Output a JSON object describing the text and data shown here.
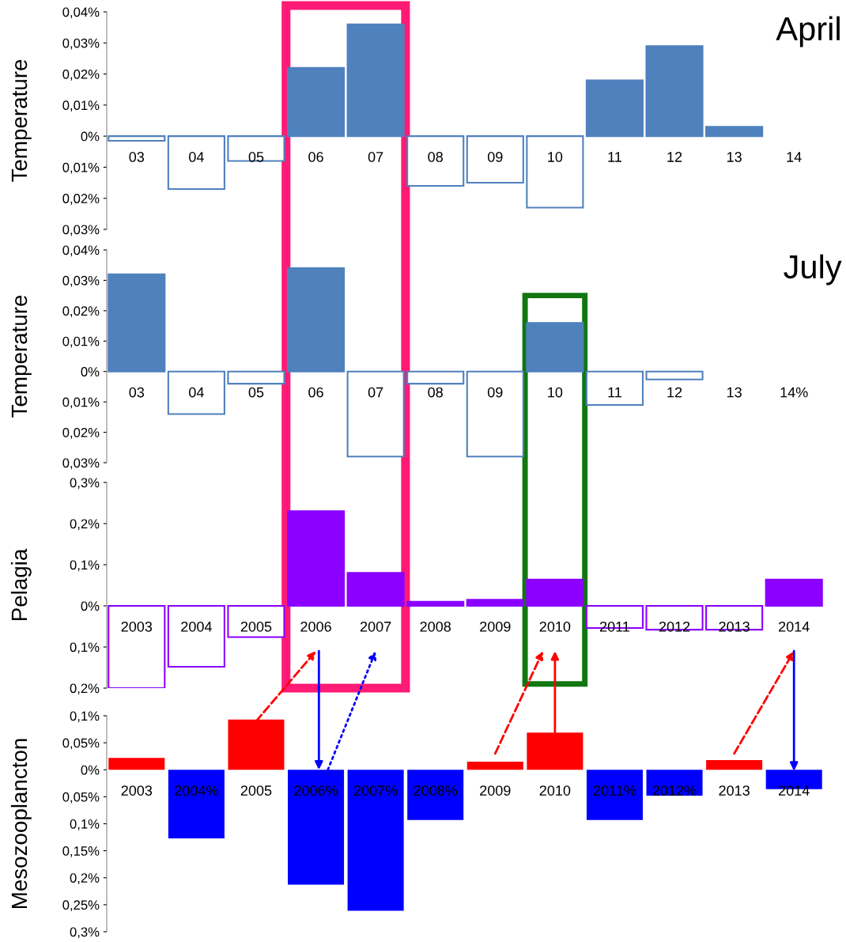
{
  "chart_data": [
    {
      "type": "bar",
      "ylabel": "Temperature",
      "annotations": [
        "April"
      ],
      "categories": [
        "03",
        "04",
        "05",
        "06",
        "07",
        "08",
        "09",
        "10",
        "11",
        "12",
        "13",
        "14"
      ],
      "series": [
        {
          "color": "#4f81bd",
          "values": [
            -0.0015,
            -0.017,
            -0.008,
            0.022,
            0.036,
            -0.016,
            -0.015,
            -0.023,
            0.018,
            0.029,
            0.003,
            null
          ]
        }
      ],
      "ylim": [
        -0.03,
        0.04
      ],
      "yticks": [
        {
          "value": 0.04,
          "label": "0,04%"
        },
        {
          "value": 0.03,
          "label": "0,03%"
        },
        {
          "value": 0.02,
          "label": "0,02%"
        },
        {
          "value": 0.01,
          "label": "0,01%"
        },
        {
          "value": 0,
          "label": "0%"
        },
        {
          "value": -0.01,
          "label": "0,01%"
        },
        {
          "value": -0.02,
          "label": "0,02%"
        },
        {
          "value": -0.03,
          "label": "0,03%"
        }
      ]
    },
    {
      "type": "bar",
      "ylabel": "Temperature",
      "annotations": [
        "July"
      ],
      "categories": [
        "03",
        "04",
        "05",
        "06",
        "07",
        "08",
        "09",
        "10",
        "11",
        "12",
        "13",
        "14%"
      ],
      "series": [
        {
          "color": "#4f81bd",
          "values": [
            0.032,
            -0.014,
            -0.004,
            0.034,
            -0.028,
            -0.004,
            -0.028,
            0.016,
            -0.011,
            -0.0026,
            null,
            null
          ]
        }
      ],
      "ylim": [
        -0.03,
        0.04
      ],
      "yticks": [
        {
          "value": 0.04,
          "label": "0,04%"
        },
        {
          "value": 0.03,
          "label": "0,03%"
        },
        {
          "value": 0.02,
          "label": "0,02%"
        },
        {
          "value": 0.01,
          "label": "0,01%"
        },
        {
          "value": 0,
          "label": "0%"
        },
        {
          "value": -0.01,
          "label": "0,01%"
        },
        {
          "value": -0.02,
          "label": "0,02%"
        },
        {
          "value": -0.03,
          "label": "0,03%"
        }
      ]
    },
    {
      "type": "bar",
      "ylabel": "Pelagia",
      "categories": [
        "2003",
        "2004",
        "2005",
        "2006",
        "2007",
        "2008",
        "2009",
        "2010",
        "2011",
        "2012",
        "2013",
        "2014"
      ],
      "series": [
        {
          "color": "#8b00ff",
          "values": [
            -0.2,
            -0.148,
            -0.076,
            0.23,
            0.08,
            0.01,
            0.015,
            0.064,
            -0.054,
            -0.058,
            -0.058,
            0.064
          ]
        }
      ],
      "ylim": [
        -0.2,
        0.3
      ],
      "yticks": [
        {
          "value": 0.3,
          "label": "0,3%"
        },
        {
          "value": 0.2,
          "label": "0,2%"
        },
        {
          "value": 0.1,
          "label": "0,1%"
        },
        {
          "value": 0,
          "label": "0%"
        },
        {
          "value": -0.1,
          "label": "0,1%"
        },
        {
          "value": -0.2,
          "label": "0,2%"
        }
      ]
    },
    {
      "type": "bar",
      "ylabel": "Mesozooplancton",
      "categories": [
        "2003",
        "2004%",
        "2005",
        "2006%",
        "2007%",
        "2008%",
        "2009",
        "2010",
        "2011%",
        "2012%",
        "2013",
        "2014"
      ],
      "series": [
        {
          "values": [
            0.022,
            -0.127,
            0.093,
            -0.213,
            -0.261,
            -0.093,
            0.015,
            0.069,
            -0.093,
            -0.048,
            0.018,
            -0.036
          ],
          "colors": [
            "#ff0000",
            "#0000ff",
            "#ff0000",
            "#0000ff",
            "#0000ff",
            "#0000ff",
            "#ff0000",
            "#ff0000",
            "#0000ff",
            "#0000ff",
            "#ff0000",
            "#0000ff"
          ]
        }
      ],
      "ylim": [
        -0.3,
        0.1
      ],
      "yticks": [
        {
          "value": 0.1,
          "label": "0,1%"
        },
        {
          "value": 0.05,
          "label": "0,05%"
        },
        {
          "value": 0,
          "label": "0%"
        },
        {
          "value": -0.05,
          "label": "0,05%"
        },
        {
          "value": -0.1,
          "label": "0,1%"
        },
        {
          "value": -0.15,
          "label": "0,15%"
        },
        {
          "value": -0.2,
          "label": "0,2%"
        },
        {
          "value": -0.25,
          "label": "0,25%"
        },
        {
          "value": -0.3,
          "label": "0,3%"
        }
      ]
    }
  ]
}
